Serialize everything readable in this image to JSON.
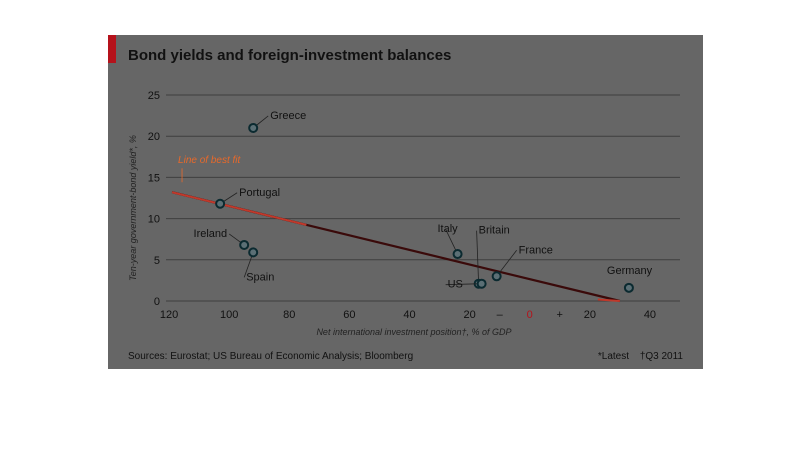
{
  "chart_data": {
    "type": "scatter",
    "title": "Bond yields and foreign-investment balances",
    "xlabel": "Net international investment position†, % of GDP",
    "ylabel": "Ten-year government-bond yield*, %",
    "x_axis_direction": "reversed (net liabilities on left, net assets on right)",
    "xlim": [
      -125,
      50
    ],
    "ylim": [
      0,
      25
    ],
    "x_ticks": [
      {
        "value": -120,
        "label": "120"
      },
      {
        "value": -100,
        "label": "100"
      },
      {
        "value": -80,
        "label": "80"
      },
      {
        "value": -60,
        "label": "60"
      },
      {
        "value": -40,
        "label": "40"
      },
      {
        "value": -20,
        "label": "20"
      },
      {
        "value": 20,
        "label": "20"
      },
      {
        "value": 40,
        "label": "40"
      }
    ],
    "x_sign_labels": {
      "minus": "–",
      "zero": "0",
      "plus": "+"
    },
    "y_ticks": [
      0,
      5,
      10,
      15,
      20,
      25
    ],
    "grid": "horizontal",
    "points": [
      {
        "name": "Greece",
        "x": -92,
        "y": 21
      },
      {
        "name": "Portugal",
        "x": -103,
        "y": 11.8
      },
      {
        "name": "Ireland",
        "x": -95,
        "y": 6.8
      },
      {
        "name": "Spain",
        "x": -92,
        "y": 5.9
      },
      {
        "name": "Italy",
        "x": -24,
        "y": 5.7
      },
      {
        "name": "Britain",
        "x": -17,
        "y": 2.1
      },
      {
        "name": "US",
        "x": -16,
        "y": 2.1
      },
      {
        "name": "France",
        "x": -11,
        "y": 3.0
      },
      {
        "name": "Germany",
        "x": 33,
        "y": 1.6
      }
    ],
    "best_fit": {
      "label": "Line of best fit",
      "x": [
        -119,
        30
      ],
      "y": [
        13.2,
        0
      ]
    },
    "sources": "Sources: Eurostat; US Bureau of Economic Analysis; Bloomberg",
    "notes": [
      "*Latest",
      "†Q3 2011"
    ],
    "colors": {
      "background": "#666666",
      "accent_bar": "#b5121b",
      "fit_line": "#c0392b",
      "fit_line_dark": "#3a0a0a",
      "point_fill": "#5b6f75",
      "point_edge": "#0b2a30",
      "fit_label": "#e8692a",
      "zero_tick": "#b5121b"
    }
  }
}
